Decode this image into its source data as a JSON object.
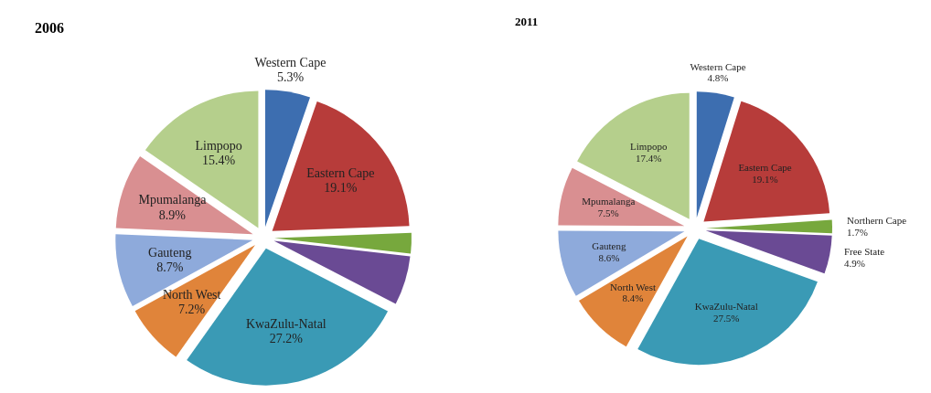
{
  "chart_data": [
    {
      "type": "pie",
      "title": "2006",
      "categories": [
        "Western Cape",
        "Eastern Cape",
        null,
        null,
        "KwaZulu-Natal",
        "North West",
        "Gauteng",
        "Mpumalanga",
        "Limpopo"
      ],
      "values": [
        5.3,
        19.1,
        2.4,
        5.8,
        27.2,
        7.2,
        8.7,
        8.9,
        15.4
      ],
      "value_labels": [
        "5.3%",
        "19.1%",
        null,
        null,
        "27.2%",
        "7.2%",
        "8.7%",
        "8.9%",
        "15.4%"
      ],
      "colors": [
        "#3d6eb0",
        "#b73c3a",
        "#77a83d",
        "#6a4a94",
        "#3a9ab5",
        "#e0843a",
        "#8eaadb",
        "#d98f91",
        "#b5cf8c"
      ]
    },
    {
      "type": "pie",
      "title": "2011",
      "categories": [
        "Western Cape",
        "Eastern Cape",
        "Northern Cape",
        "Free State",
        "KwaZulu-Natal",
        "North West",
        "Gauteng",
        "Mpumalanga",
        "Limpopo"
      ],
      "values": [
        4.8,
        19.1,
        1.7,
        4.9,
        27.5,
        8.4,
        8.6,
        7.5,
        17.4
      ],
      "value_labels": [
        "4.8%",
        "19.1%",
        "1.7%",
        "4.9%",
        "27.5%",
        "8.4%",
        "8.6%",
        "7.5%",
        "17.4%"
      ],
      "colors": [
        "#3d6eb0",
        "#b73c3a",
        "#77a83d",
        "#6a4a94",
        "#3a9ab5",
        "#e0843a",
        "#8eaadb",
        "#d98f91",
        "#b5cf8c"
      ]
    }
  ]
}
